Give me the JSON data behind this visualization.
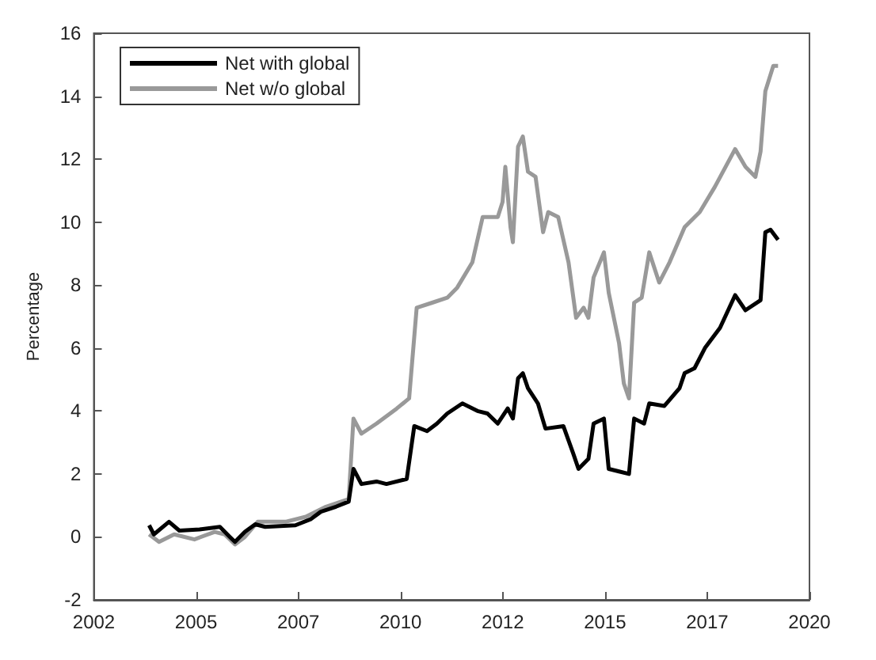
{
  "chart_data": {
    "type": "line",
    "ylabel": "Percentage",
    "xlim": [
      2002,
      2020
    ],
    "ylim": [
      -2,
      16
    ],
    "xticks": [
      {
        "value": 2002,
        "label": "2002"
      },
      {
        "value": 2004.571,
        "label": "2005"
      },
      {
        "value": 2007.143,
        "label": "2007"
      },
      {
        "value": 2009.714,
        "label": "2010"
      },
      {
        "value": 2012.286,
        "label": "2012"
      },
      {
        "value": 2014.857,
        "label": "2015"
      },
      {
        "value": 2017.429,
        "label": "2017"
      },
      {
        "value": 2020,
        "label": "2020"
      }
    ],
    "yticks": [
      -2,
      0,
      2,
      4,
      6,
      8,
      10,
      12,
      14,
      16
    ],
    "grid": false,
    "legend": "top left",
    "line_style": "solid",
    "marker": "none",
    "series": [
      {
        "name": "Net with global",
        "color": "#000000",
        "x": [
          2003.39,
          2003.51,
          2003.89,
          2004.15,
          2004.66,
          2005.17,
          2005.42,
          2005.55,
          2005.8,
          2006.06,
          2006.31,
          2007.07,
          2007.45,
          2007.71,
          2008.09,
          2008.41,
          2008.53,
          2008.73,
          2009.11,
          2009.36,
          2009.87,
          2010.06,
          2010.38,
          2010.63,
          2010.89,
          2011.27,
          2011.65,
          2011.9,
          2012.16,
          2012.41,
          2012.54,
          2012.67,
          2012.79,
          2012.92,
          2013.17,
          2013.36,
          2013.81,
          2014.06,
          2014.19,
          2014.44,
          2014.57,
          2014.83,
          2014.95,
          2015.21,
          2015.46,
          2015.59,
          2015.84,
          2015.97,
          2016.35,
          2016.73,
          2016.86,
          2017.11,
          2017.37,
          2017.75,
          2018.13,
          2018.39,
          2018.77,
          2018.89,
          2019.02,
          2019.21
        ],
        "values": [
          0.37,
          0.08,
          0.48,
          0.2,
          0.24,
          0.32,
          0,
          -0.16,
          0.16,
          0.4,
          0.32,
          0.37,
          0.56,
          0.8,
          0.96,
          1.12,
          2.16,
          1.68,
          1.76,
          1.68,
          1.84,
          3.52,
          3.36,
          3.6,
          3.92,
          4.24,
          4.0,
          3.92,
          3.6,
          4.08,
          3.76,
          5.04,
          5.2,
          4.72,
          4.24,
          3.44,
          3.52,
          2.64,
          2.16,
          2.48,
          3.6,
          3.76,
          2.16,
          2.08,
          2.0,
          3.76,
          3.6,
          4.24,
          4.16,
          4.72,
          5.2,
          5.36,
          6.0,
          6.64,
          7.68,
          7.2,
          7.52,
          9.68,
          9.76,
          9.44
        ]
      },
      {
        "name": "Net w/o global",
        "color": "#999999",
        "x": [
          2003.39,
          2003.64,
          2004.02,
          2004.53,
          2005.04,
          2005.29,
          2005.55,
          2005.8,
          2006.12,
          2006.82,
          2007.33,
          2007.84,
          2008.41,
          2008.53,
          2008.73,
          2009.11,
          2009.62,
          2009.93,
          2010.12,
          2010.51,
          2010.89,
          2011.14,
          2011.52,
          2011.78,
          2012.16,
          2012.28,
          2012.35,
          2012.48,
          2012.54,
          2012.67,
          2012.79,
          2012.92,
          2013.11,
          2013.3,
          2013.43,
          2013.68,
          2013.94,
          2014.13,
          2014.32,
          2014.44,
          2014.57,
          2014.83,
          2014.95,
          2015.21,
          2015.33,
          2015.46,
          2015.59,
          2015.78,
          2015.97,
          2016.22,
          2016.48,
          2016.86,
          2017.24,
          2017.62,
          2018.13,
          2018.39,
          2018.64,
          2018.77,
          2018.89,
          2019.09,
          2019.21
        ],
        "values": [
          0.08,
          -0.16,
          0.08,
          -0.08,
          0.16,
          0.08,
          -0.24,
          0,
          0.48,
          0.48,
          0.64,
          0.96,
          1.2,
          3.76,
          3.28,
          3.6,
          4.08,
          4.4,
          7.28,
          7.44,
          7.6,
          7.92,
          8.72,
          10.16,
          10.16,
          10.64,
          11.76,
          9.84,
          9.36,
          12.4,
          12.72,
          11.6,
          11.44,
          9.68,
          10.32,
          10.16,
          8.72,
          6.96,
          7.28,
          6.96,
          8.24,
          9.04,
          7.76,
          6.16,
          4.88,
          4.4,
          7.44,
          7.6,
          9.04,
          8.08,
          8.72,
          9.84,
          10.32,
          11.12,
          12.32,
          11.76,
          11.44,
          12.24,
          14.16,
          14.96,
          14.96
        ]
      }
    ]
  }
}
